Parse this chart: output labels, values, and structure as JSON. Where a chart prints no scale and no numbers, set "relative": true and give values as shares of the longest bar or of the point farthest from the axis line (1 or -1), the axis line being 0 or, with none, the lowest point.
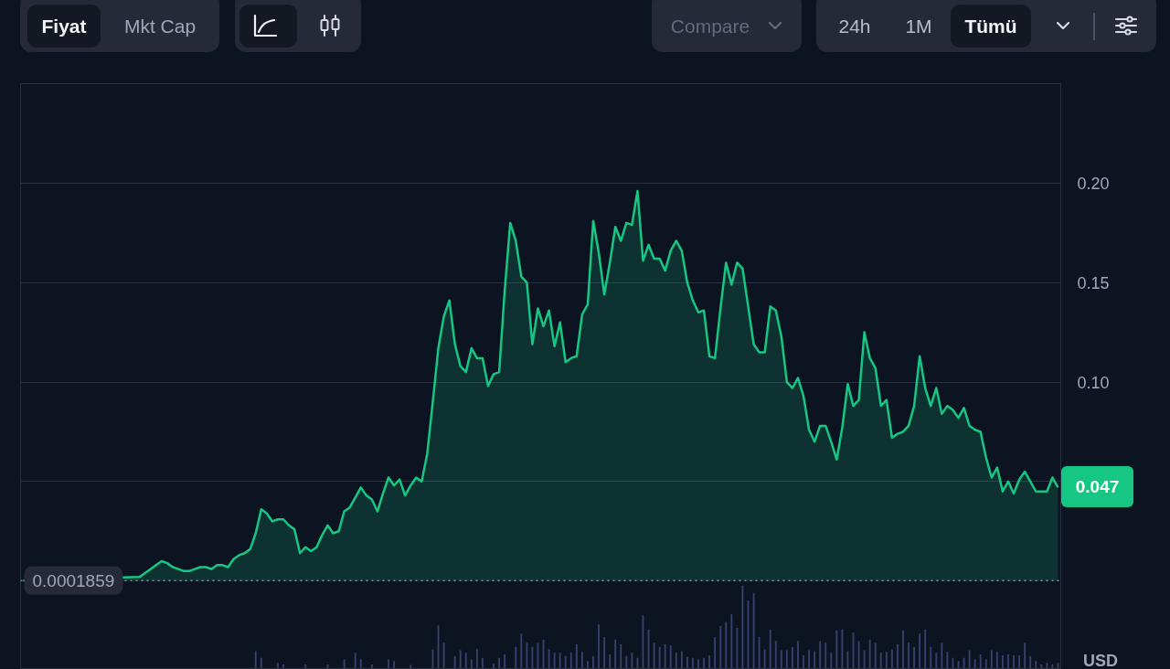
{
  "chart_data": [
    {
      "type": "area",
      "categories": [
        null,
        null,
        null,
        null,
        null,
        null,
        null,
        null,
        null,
        null,
        null,
        null,
        null,
        null,
        null,
        null,
        null,
        null,
        null,
        null,
        null,
        null,
        null,
        null,
        null,
        null,
        null,
        null,
        null,
        null,
        null,
        null,
        null,
        null,
        null,
        null,
        null,
        null,
        null,
        null,
        null,
        null,
        null,
        null,
        null,
        null,
        null,
        null,
        null,
        null,
        null,
        null,
        null,
        null,
        null,
        null,
        null,
        null,
        null,
        null,
        null,
        null,
        null,
        null,
        null,
        null,
        null,
        null,
        null,
        null,
        null,
        null,
        null,
        null,
        null,
        null,
        null,
        null,
        null,
        null,
        null,
        null,
        null,
        null,
        null,
        null,
        null,
        null,
        null,
        null,
        null,
        null,
        null,
        null,
        null,
        null,
        null,
        null,
        null,
        null,
        null,
        null,
        null,
        null,
        null,
        null,
        null,
        null,
        null,
        null,
        null,
        null,
        null,
        null,
        null,
        null,
        null,
        null,
        null,
        null,
        null,
        null,
        null,
        null,
        null,
        null,
        null,
        null,
        null,
        null,
        null,
        null,
        null,
        null,
        null,
        null,
        null,
        null,
        null,
        null,
        null,
        null,
        null,
        null,
        null,
        null,
        null,
        null,
        null,
        null,
        null,
        null,
        null,
        null,
        null,
        null,
        null,
        null,
        null,
        null,
        null,
        null,
        null,
        null,
        null,
        null,
        null,
        null,
        null,
        null,
        null,
        null,
        null,
        null,
        null,
        null,
        null,
        null,
        null,
        null,
        null,
        null,
        null,
        null,
        null,
        null,
        null,
        null
      ],
      "values": [
        0.0002,
        null,
        null,
        null,
        null,
        null,
        null,
        null,
        null,
        null,
        null,
        null,
        null,
        null,
        null,
        null,
        null,
        null,
        null,
        null,
        null,
        0.002,
        0.004,
        0.006,
        0.008,
        0.01,
        0.009,
        0.007,
        0.006,
        0.005,
        0.005,
        0.006,
        0.007,
        0.007,
        0.006,
        0.008,
        0.008,
        0.007,
        0.011,
        0.013,
        0.014,
        0.016,
        0.024,
        0.036,
        0.034,
        0.03,
        0.031,
        0.031,
        0.028,
        0.026,
        0.014,
        0.017,
        0.015,
        0.017,
        0.023,
        0.028,
        0.024,
        0.025,
        0.035,
        0.037,
        0.042,
        0.047,
        0.043,
        0.041,
        0.035,
        0.044,
        0.052,
        0.048,
        0.051,
        0.043,
        0.048,
        0.052,
        0.05,
        0.064,
        0.09,
        0.117,
        0.133,
        0.141,
        0.119,
        0.108,
        0.105,
        0.117,
        0.112,
        0.112,
        0.098,
        0.104,
        0.105,
        0.146,
        0.18,
        0.171,
        0.153,
        0.15,
        0.119,
        0.137,
        0.128,
        0.136,
        0.118,
        0.13,
        0.11,
        0.112,
        0.113,
        0.134,
        0.139,
        0.181,
        0.165,
        0.144,
        0.16,
        0.178,
        0.171,
        0.18,
        0.179,
        0.196,
        0.161,
        0.169,
        0.162,
        0.162,
        0.156,
        0.166,
        0.171,
        0.166,
        0.15,
        0.141,
        0.135,
        0.136,
        0.113,
        0.112,
        0.137,
        0.16,
        0.149,
        0.16,
        0.157,
        0.138,
        0.119,
        0.115,
        0.115,
        0.138,
        0.136,
        0.123,
        0.1,
        0.097,
        0.102,
        0.093,
        0.076,
        0.07,
        0.078,
        0.078,
        0.07,
        0.061,
        0.077,
        0.099,
        0.088,
        0.091,
        0.125,
        0.112,
        0.107,
        0.088,
        0.091,
        0.072,
        0.074,
        0.075,
        0.078,
        0.088,
        0.113,
        0.097,
        0.088,
        0.097,
        0.084,
        0.088,
        0.086,
        0.082,
        0.087,
        0.078,
        0.076,
        0.075,
        0.062,
        0.052,
        0.057,
        0.045,
        0.05,
        0.044,
        0.051,
        0.055,
        0.05,
        0.045,
        0.045,
        0.045,
        0.052,
        0.047
      ],
      "color": "#16c784",
      "value_labels": [
        null,
        null,
        null,
        null,
        null,
        null,
        null,
        null,
        null,
        null,
        null,
        null,
        null,
        null,
        null,
        null,
        null,
        null,
        null,
        null,
        null,
        null,
        null,
        null,
        null,
        null,
        null,
        null,
        null,
        null,
        null,
        null,
        null,
        null,
        null,
        null,
        null,
        null,
        null,
        null,
        null,
        null,
        null,
        null,
        null,
        null,
        null,
        null,
        null,
        null,
        null,
        null,
        null,
        null,
        null,
        null,
        null,
        null,
        null,
        null,
        null,
        null,
        null,
        null,
        null,
        null,
        null,
        null,
        null,
        null,
        null,
        null,
        null,
        null,
        null,
        null,
        null,
        null,
        null,
        null,
        null,
        null,
        null,
        null,
        null,
        null,
        null,
        null,
        null,
        null,
        null,
        null,
        null,
        null,
        null,
        null,
        null,
        null,
        null,
        null,
        null,
        null,
        null,
        null,
        null,
        null,
        null,
        null,
        null,
        null,
        null,
        null,
        null,
        null,
        null,
        null,
        null,
        null,
        null,
        null,
        null,
        null,
        null,
        null,
        null,
        null,
        null,
        null,
        null,
        null,
        null,
        null,
        null,
        null,
        null,
        null,
        null,
        null,
        null,
        null,
        null,
        null,
        null,
        null,
        null,
        null,
        null,
        null,
        null,
        null,
        null,
        null,
        null,
        null,
        null,
        null,
        null,
        null,
        null,
        null,
        null,
        null,
        null,
        null,
        null,
        null,
        null,
        null,
        null,
        null,
        null,
        null,
        null,
        null,
        null,
        null,
        null,
        null,
        null,
        null,
        null,
        null,
        null,
        null,
        null,
        null,
        null,
        "0.047"
      ],
      "ylim": [
        -0.044,
        0.25
      ],
      "yticks": [
        {
          "value": 0.05,
          "label": null
        },
        {
          "value": 0.1,
          "label": "0.10"
        },
        {
          "value": 0.15,
          "label": "0.15"
        },
        {
          "value": 0.2,
          "label": "0.20"
        }
      ],
      "ylabel": "USD",
      "ref_lines": [
        {
          "axis": "y",
          "value": 0.0001859,
          "label": "0.0001859",
          "color": "#8a90a2",
          "line_style": "dotted"
        }
      ],
      "grid": "y",
      "tick_labels": "y",
      "annotations": [
        "Fiyat",
        "Mkt Cap",
        "Compare",
        "24h",
        "1M",
        "Tümü"
      ]
    },
    {
      "type": "bar",
      "relative": true,
      "categories": [
        null,
        null,
        null,
        null,
        null,
        null,
        null,
        null,
        null,
        null,
        null,
        null,
        null,
        null,
        null,
        null,
        null,
        null,
        null,
        null,
        null,
        null,
        null,
        null,
        null,
        null,
        null,
        null,
        null,
        null,
        null,
        null,
        null,
        null,
        null,
        null,
        null,
        null,
        null,
        null,
        null,
        null,
        null,
        null,
        null,
        null,
        null,
        null,
        null,
        null,
        null,
        null,
        null,
        null,
        null,
        null,
        null,
        null,
        null,
        null,
        null,
        null,
        null,
        null,
        null,
        null,
        null,
        null,
        null,
        null,
        null,
        null,
        null,
        null,
        null,
        null,
        null,
        null,
        null,
        null,
        null,
        null,
        null,
        null,
        null,
        null,
        null,
        null,
        null,
        null,
        null,
        null,
        null,
        null,
        null,
        null,
        null,
        null,
        null,
        null,
        null,
        null,
        null,
        null,
        null,
        null,
        null,
        null,
        null,
        null,
        null,
        null,
        null,
        null,
        null,
        null,
        null,
        null,
        null,
        null,
        null,
        null,
        null,
        null,
        null,
        null,
        null,
        null,
        null,
        null,
        null,
        null,
        null,
        null,
        null,
        null,
        null,
        null,
        null,
        null,
        null,
        null,
        null,
        null,
        null,
        null,
        null,
        null,
        null,
        null,
        null,
        null,
        null,
        null,
        null,
        null,
        null,
        null,
        null,
        null,
        null,
        null,
        null,
        null,
        null,
        null,
        null,
        null,
        null,
        null,
        null,
        null,
        null,
        null,
        null,
        null,
        null,
        null,
        null,
        null,
        null,
        null,
        null,
        null,
        null,
        null,
        null,
        null
      ],
      "values": [
        null,
        null,
        null,
        null,
        null,
        null,
        null,
        null,
        null,
        null,
        null,
        null,
        null,
        null,
        null,
        null,
        null,
        null,
        null,
        null,
        null,
        null,
        null,
        null,
        null,
        null,
        null,
        null,
        null,
        null,
        null,
        null,
        null,
        null,
        null,
        null,
        null,
        null,
        null,
        null,
        null,
        null,
        0.21,
        0.13,
        null,
        null,
        0.07,
        0.05,
        null,
        null,
        null,
        0.05,
        null,
        null,
        null,
        0.05,
        null,
        null,
        0.11,
        null,
        0.19,
        0.11,
        null,
        0.05,
        null,
        null,
        0.11,
        0.09,
        null,
        null,
        0.04,
        null,
        null,
        null,
        0.23,
        0.52,
        0.31,
        null,
        0.15,
        0.22,
        0.19,
        0.11,
        0.24,
        0.13,
        null,
        0.06,
        0.13,
        0.17,
        null,
        0.26,
        0.42,
        0.31,
        0.26,
        0.31,
        0.35,
        0.23,
        0.19,
        0.19,
        0.15,
        0.19,
        0.29,
        0.2,
        0.09,
        0.15,
        0.53,
        0.38,
        0.17,
        0.35,
        0.29,
        0.15,
        0.19,
        0.13,
        0.64,
        0.47,
        0.31,
        0.26,
        0.29,
        0.28,
        0.19,
        0.21,
        0.14,
        0.13,
        0.11,
        0.13,
        0.16,
        0.38,
        0.51,
        0.56,
        0.65,
        0.49,
        1,
        0.82,
        0.91,
        0.38,
        0.23,
        0.47,
        0.33,
        0.22,
        0.22,
        0.26,
        0.33,
        0.16,
        0.22,
        0.21,
        0.33,
        0.31,
        0.19,
        0.46,
        0.47,
        0.21,
        0.43,
        0.33,
        0.22,
        0.35,
        0.31,
        0.19,
        0.2,
        0.23,
        0.29,
        0.46,
        0.31,
        0.26,
        0.42,
        0.47,
        0.26,
        0.19,
        0.31,
        0.2,
        0.13,
        0.09,
        0.13,
        0.22,
        0.11,
        0.17,
        0.11,
        0.22,
        0.2,
        0.16,
        0.17,
        0.16,
        0.16,
        0.31,
        0.15,
        0.09,
        0.05,
        0.07,
        0.05,
        0.07
      ],
      "color": "#384271",
      "tick_labels": false
    }
  ]
}
